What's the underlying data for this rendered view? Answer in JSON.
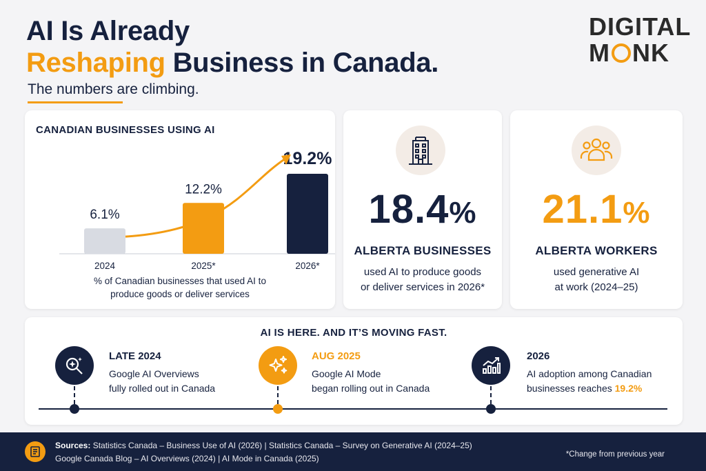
{
  "header": {
    "title_line1": "AI Is Already",
    "title_highlight": "Reshaping",
    "title_line2_rest": " Business in Canada.",
    "subtitle": "The numbers are climbing."
  },
  "logo": {
    "line1": "DIGITAL",
    "line2_a": "M",
    "line2_b": "NK"
  },
  "colors": {
    "navy": "#16213e",
    "orange": "#f39c12",
    "gray_bar": "#d8dbe2",
    "icon_bg": "#f3ece6"
  },
  "chart_data": {
    "type": "bar",
    "title": "CANADIAN BUSINESSES USING AI",
    "categories": [
      "2024",
      "2025*",
      "2026*"
    ],
    "values": [
      6.1,
      12.2,
      19.2
    ],
    "value_labels": [
      "6.1%",
      "12.2%",
      "19.2%"
    ],
    "bar_colors": [
      "#d8dbe2",
      "#f39c12",
      "#16213e"
    ],
    "trend_arrow": true,
    "caption": "% of Canadian businesses that used AI to produce goods or deliver services",
    "caption_line1": "% of Canadian businesses that used AI to",
    "caption_line2": "produce goods or deliver services",
    "ylim": [
      0,
      19.2
    ]
  },
  "stats": {
    "alberta": {
      "icon": "building-icon",
      "value": "18.4",
      "unit": "%",
      "label": "ALBERTA BUSINESSES",
      "desc1": "used AI to produce goods",
      "desc2": "or deliver services in 2026*"
    },
    "workers": {
      "icon": "people-icon",
      "value": "21.1",
      "unit": "%",
      "label": "ALBERTA WORKERS",
      "desc1": "used generative AI",
      "desc2": "at work (2024–25)"
    }
  },
  "timeline": {
    "heading": "AI IS HERE. AND IT’S MOVING FAST.",
    "items": [
      {
        "icon": "search-sparkle-icon",
        "date": "LATE 2024",
        "line1": "Google AI Overviews",
        "line2": "fully rolled out in Canada"
      },
      {
        "icon": "sparkles-icon",
        "date": "AUG 2025",
        "line1": "Google AI Mode",
        "line2": "began rolling out in Canada"
      },
      {
        "icon": "growth-chart-icon",
        "date": "2026",
        "line1": "AI adoption among Canadian",
        "line2_a": "businesses reaches ",
        "line2_b": "19.2%"
      }
    ]
  },
  "footer": {
    "sources_label": "Sources:",
    "line1": " Statistics Canada – Business Use of AI (2026)  |  Statistics Canada – Survey on Generative AI (2024–25)",
    "line2": "Google Canada Blog – AI Overviews (2024)  |  AI Mode in Canada (2025)",
    "note": "*Change from previous year"
  }
}
